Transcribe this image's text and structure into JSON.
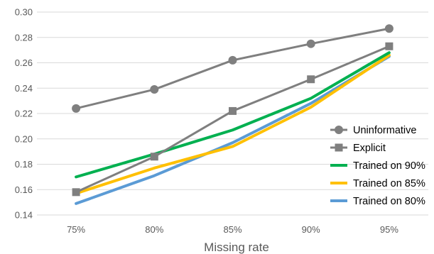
{
  "chart_data": {
    "type": "line",
    "title": "",
    "xlabel": "Missing rate",
    "ylabel": "",
    "categories": [
      "75%",
      "80%",
      "85%",
      "90%",
      "95%"
    ],
    "ylim": [
      0.14,
      0.3
    ],
    "yticks": [
      "0.14",
      "0.16",
      "0.18",
      "0.20",
      "0.22",
      "0.24",
      "0.26",
      "0.28",
      "0.30"
    ],
    "grid": true,
    "legend_position": "right",
    "series": [
      {
        "name": "Uninformative",
        "values": [
          0.224,
          0.239,
          0.262,
          0.275,
          0.287
        ],
        "color": "#7f7f7f",
        "marker": "circle"
      },
      {
        "name": "Explicit",
        "values": [
          0.158,
          0.186,
          0.222,
          0.247,
          0.273
        ],
        "color": "#7f7f7f",
        "marker": "square"
      },
      {
        "name": "Trained on 90%",
        "values": [
          0.17,
          0.188,
          0.207,
          0.232,
          0.268
        ],
        "color": "#00b050",
        "marker": "none"
      },
      {
        "name": "Trained on 85%",
        "values": [
          0.157,
          0.177,
          0.194,
          0.225,
          0.266
        ],
        "color": "#ffc000",
        "marker": "none"
      },
      {
        "name": "Trained on 80%",
        "values": [
          0.149,
          0.171,
          0.197,
          0.228,
          0.265
        ],
        "color": "#5b9bd5",
        "marker": "none"
      }
    ]
  }
}
